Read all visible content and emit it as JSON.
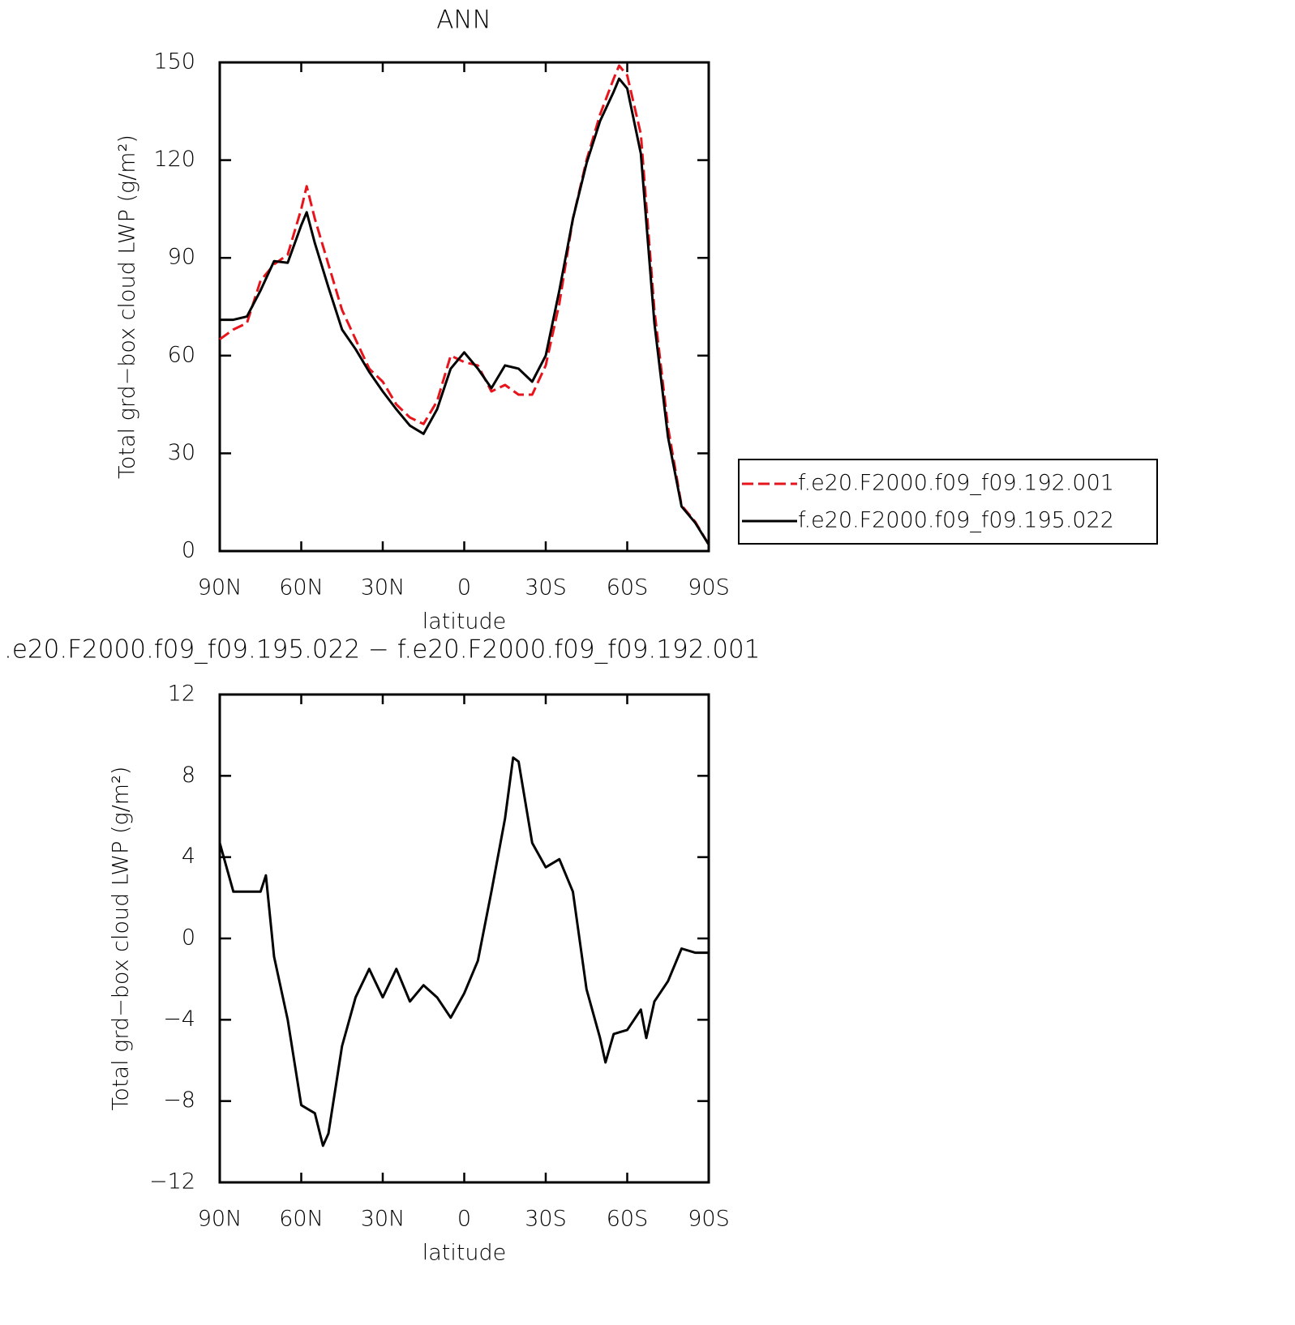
{
  "chart_data": [
    {
      "type": "line",
      "title": "ANN",
      "xlabel": "latitude",
      "ylabel": "Total grd−box cloud LWP (g/m²)",
      "x": [
        90,
        85,
        80,
        75,
        70,
        65,
        60,
        58,
        55,
        50,
        45,
        40,
        35,
        30,
        25,
        20,
        15,
        10,
        5,
        0,
        -5,
        -10,
        -15,
        -20,
        -25,
        -30,
        -35,
        -40,
        -45,
        -50,
        -55,
        -57,
        -60,
        -65,
        -70,
        -75,
        -80,
        -85,
        -90
      ],
      "xlim": [
        90,
        -90
      ],
      "xticks": [
        {
          "value": 90,
          "label": "90N"
        },
        {
          "value": 60,
          "label": "60N"
        },
        {
          "value": 30,
          "label": "30N"
        },
        0,
        {
          "value": -30,
          "label": "30S"
        },
        {
          "value": -60,
          "label": "60S"
        },
        {
          "value": -90,
          "label": "90S"
        }
      ],
      "ylim": [
        0,
        150
      ],
      "yticks": [
        0,
        30,
        60,
        90,
        120,
        150
      ],
      "legend": "right",
      "series": [
        {
          "name": "f.e20.F2000.f09_f09.192.001",
          "color": "#e8141b",
          "linestyle": "dashed",
          "values": [
            65,
            68,
            70,
            83,
            88,
            91,
            105,
            112,
            102,
            88,
            74,
            65,
            56,
            52,
            45,
            41,
            39,
            46,
            60,
            58,
            57,
            49,
            51,
            48,
            48,
            57,
            76,
            102,
            120,
            134,
            145,
            149,
            146,
            128,
            74,
            38,
            14,
            9,
            2
          ]
        },
        {
          "name": "f.e20.F2000.f09_f09.195.022",
          "color": "#000000",
          "linestyle": "solid",
          "values": [
            71,
            71,
            72,
            80,
            89,
            88.5,
            100,
            104,
            94.5,
            81,
            68,
            62,
            55,
            49,
            43.5,
            38.5,
            36,
            43.5,
            56,
            61,
            56,
            50,
            57,
            56,
            52,
            60,
            80,
            102,
            119,
            132,
            141,
            145,
            142,
            122,
            70,
            35,
            13.7,
            8.7,
            2
          ]
        }
      ]
    },
    {
      "type": "line",
      "title": ".e20.F2000.f09_f09.195.022 − f.e20.F2000.f09_f09.192.001",
      "xlabel": "latitude",
      "ylabel": "Total grd−box cloud LWP (g/m²)",
      "x": [
        90,
        85,
        80,
        75,
        73,
        70,
        65,
        60,
        55,
        52,
        50,
        45,
        40,
        35,
        30,
        25,
        20,
        15,
        10,
        5,
        0,
        -5,
        -10,
        -15,
        -18,
        -20,
        -25,
        -30,
        -35,
        -40,
        -45,
        -50,
        -52,
        -55,
        -60,
        -65,
        -67,
        -70,
        -75,
        -80,
        -85,
        -90
      ],
      "xlim": [
        90,
        -90
      ],
      "xticks": [
        {
          "value": 90,
          "label": "90N"
        },
        {
          "value": 60,
          "label": "60N"
        },
        {
          "value": 30,
          "label": "30N"
        },
        0,
        {
          "value": -30,
          "label": "30S"
        },
        {
          "value": -60,
          "label": "60S"
        },
        {
          "value": -90,
          "label": "90S"
        }
      ],
      "ylim": [
        -12,
        12
      ],
      "yticks": [
        {
          "value": -12,
          "label": "−12"
        },
        {
          "value": -8,
          "label": "−8"
        },
        {
          "value": -4,
          "label": "−4"
        },
        0,
        4,
        8,
        12
      ],
      "color": "#000000",
      "values": [
        4.7,
        2.3,
        2.3,
        2.3,
        3.1,
        -0.9,
        -4,
        -8.2,
        -8.6,
        -10.2,
        -9.6,
        -5.3,
        -2.9,
        -1.5,
        -2.9,
        -1.5,
        -3.1,
        -2.3,
        -2.9,
        -3.9,
        -2.7,
        -1.1,
        2.3,
        5.9,
        8.9,
        8.7,
        4.7,
        3.5,
        3.9,
        2.3,
        -2.5,
        -4.9,
        -6.1,
        -4.7,
        -4.5,
        -3.5,
        -4.9,
        -3.1,
        -2.1,
        -0.5,
        -0.7,
        -0.7
      ]
    }
  ]
}
